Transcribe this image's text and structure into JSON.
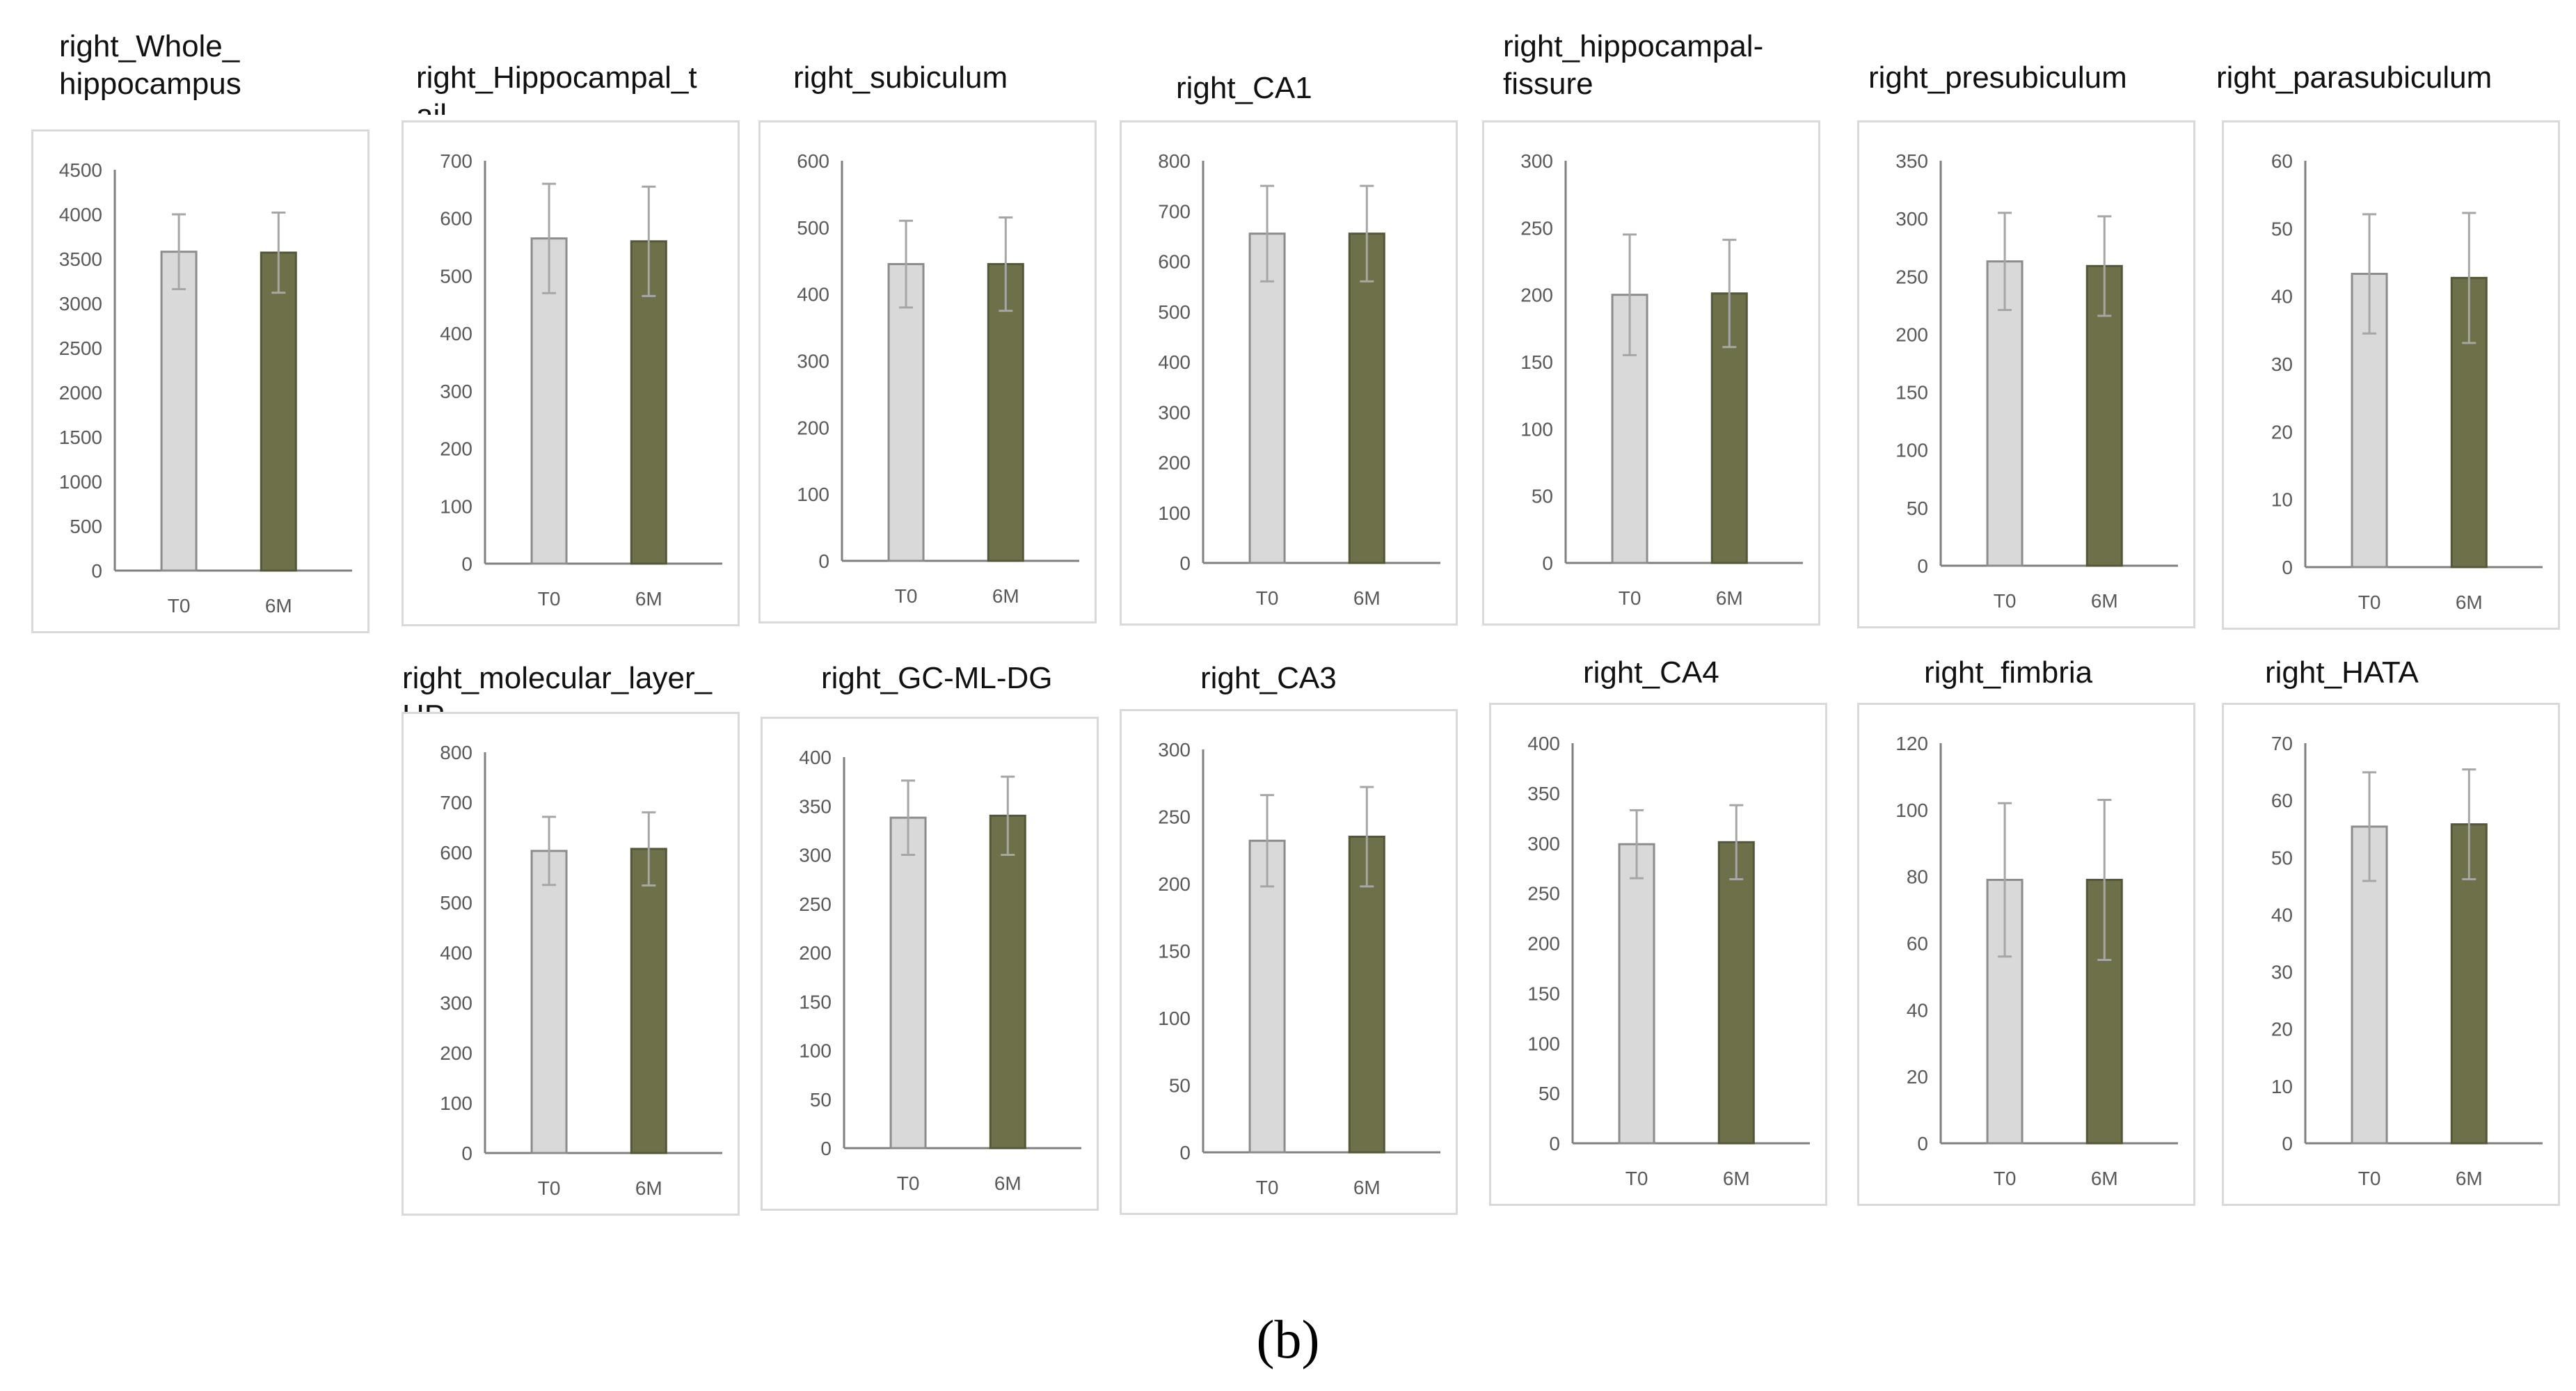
{
  "caption": "(b)",
  "colors": {
    "t0_fill": "#d9d9d9",
    "t0_stroke": "#8c8c8c",
    "m6_fill": "#6e704a",
    "m6_stroke": "#55573a",
    "axis": "#7f7f7f",
    "tick_text": "#595959",
    "error_bar": "#a6a6a6",
    "frame": "#d9d9d9"
  },
  "chart_data": [
    {
      "type": "bar",
      "title": "right_Whole_\nhippocampus",
      "categories": [
        "T0",
        "6M"
      ],
      "values": [
        3580,
        3570
      ],
      "errors": [
        420,
        450
      ],
      "ylim": [
        0,
        4500
      ],
      "yticks": [
        0,
        500,
        1000,
        1500,
        2000,
        2500,
        3000,
        3500,
        4000,
        4500
      ]
    },
    {
      "type": "bar",
      "title": "right_Hippocampal_t\nail",
      "categories": [
        "T0",
        "6M"
      ],
      "values": [
        565,
        560
      ],
      "errors": [
        95,
        95
      ],
      "ylim": [
        0,
        700
      ],
      "yticks": [
        0,
        100,
        200,
        300,
        400,
        500,
        600,
        700
      ]
    },
    {
      "type": "bar",
      "title": "right_subiculum",
      "categories": [
        "T0",
        "6M"
      ],
      "values": [
        445,
        445
      ],
      "errors": [
        65,
        70
      ],
      "ylim": [
        0,
        600
      ],
      "yticks": [
        0,
        100,
        200,
        300,
        400,
        500,
        600
      ]
    },
    {
      "type": "bar",
      "title": "right_CA1",
      "categories": [
        "T0",
        "6M"
      ],
      "values": [
        655,
        655
      ],
      "errors": [
        95,
        95
      ],
      "ylim": [
        0,
        800
      ],
      "yticks": [
        0,
        100,
        200,
        300,
        400,
        500,
        600,
        700,
        800
      ]
    },
    {
      "type": "bar",
      "title": "right_hippocampal-\nfissure",
      "categories": [
        "T0",
        "6M"
      ],
      "values": [
        200,
        201
      ],
      "errors": [
        45,
        40
      ],
      "ylim": [
        0,
        300
      ],
      "yticks": [
        0,
        50,
        100,
        150,
        200,
        250,
        300
      ]
    },
    {
      "type": "bar",
      "title": "right_presubiculum",
      "categories": [
        "T0",
        "6M"
      ],
      "values": [
        263,
        259
      ],
      "errors": [
        42,
        43
      ],
      "ylim": [
        0,
        350
      ],
      "yticks": [
        0,
        50,
        100,
        150,
        200,
        250,
        300,
        350
      ]
    },
    {
      "type": "bar",
      "title": "right_parasubiculum",
      "categories": [
        "T0",
        "6M"
      ],
      "values": [
        43.3,
        42.7
      ],
      "errors": [
        8.8,
        9.6
      ],
      "ylim": [
        0,
        60
      ],
      "yticks": [
        0,
        10,
        20,
        30,
        40,
        50,
        60
      ]
    },
    {
      "type": "bar",
      "title": "right_molecular_layer_\nHP",
      "categories": [
        "T0",
        "6M"
      ],
      "values": [
        603,
        607
      ],
      "errors": [
        68,
        73
      ],
      "ylim": [
        0,
        800
      ],
      "yticks": [
        0,
        100,
        200,
        300,
        400,
        500,
        600,
        700,
        800
      ]
    },
    {
      "type": "bar",
      "title": "right_GC-ML-DG",
      "categories": [
        "T0",
        "6M"
      ],
      "values": [
        338,
        340
      ],
      "errors": [
        38,
        40
      ],
      "ylim": [
        0,
        400
      ],
      "yticks": [
        0,
        50,
        100,
        150,
        200,
        250,
        300,
        350,
        400
      ]
    },
    {
      "type": "bar",
      "title": "right_CA3",
      "categories": [
        "T0",
        "6M"
      ],
      "values": [
        232,
        235
      ],
      "errors": [
        34,
        37
      ],
      "ylim": [
        0,
        300
      ],
      "yticks": [
        0,
        50,
        100,
        150,
        200,
        250,
        300
      ]
    },
    {
      "type": "bar",
      "title": "right_CA4",
      "categories": [
        "T0",
        "6M"
      ],
      "values": [
        299,
        301
      ],
      "errors": [
        34,
        37
      ],
      "ylim": [
        0,
        400
      ],
      "yticks": [
        0,
        50,
        100,
        150,
        200,
        250,
        300,
        350,
        400
      ]
    },
    {
      "type": "bar",
      "title": "right_fimbria",
      "categories": [
        "T0",
        "6M"
      ],
      "values": [
        79,
        79
      ],
      "errors": [
        23,
        24
      ],
      "ylim": [
        0,
        120
      ],
      "yticks": [
        0,
        20,
        40,
        60,
        80,
        100,
        120
      ]
    },
    {
      "type": "bar",
      "title": "right_HATA",
      "categories": [
        "T0",
        "6M"
      ],
      "values": [
        55.4,
        55.8
      ],
      "errors": [
        9.5,
        9.6
      ],
      "ylim": [
        0,
        70
      ],
      "yticks": [
        0,
        10,
        20,
        30,
        40,
        50,
        60,
        70
      ]
    }
  ]
}
